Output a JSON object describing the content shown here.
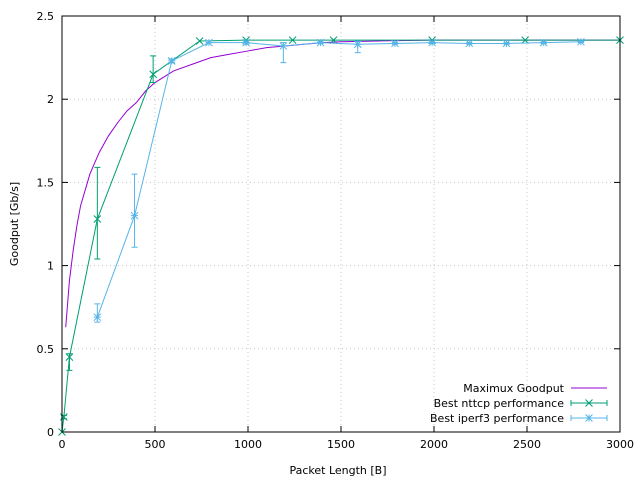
{
  "chart_data": {
    "type": "line",
    "xlabel": "Packet Length [B]",
    "ylabel": "Goodput [Gb/s]",
    "xlim": [
      0,
      3000
    ],
    "ylim": [
      0,
      2.5
    ],
    "xticks": [
      0,
      500,
      1000,
      1500,
      2000,
      2500,
      3000
    ],
    "yticks": [
      0,
      0.5,
      1,
      1.5,
      2,
      2.5
    ],
    "xtick_labels": [
      "0",
      "500",
      "1000",
      "1500",
      "2000",
      "2500",
      "3000"
    ],
    "ytick_labels": [
      "0",
      "0.5",
      "1",
      "1.5",
      "2",
      "2.5"
    ],
    "grid": true,
    "legend_position": "bottom-right",
    "series": [
      {
        "name": "Maximux Goodput",
        "kind": "curve",
        "color": "#9400d3",
        "points": [
          [
            20,
            0.63
          ],
          [
            40,
            0.91
          ],
          [
            60,
            1.09
          ],
          [
            80,
            1.24
          ],
          [
            100,
            1.36
          ],
          [
            150,
            1.55
          ],
          [
            200,
            1.68
          ],
          [
            250,
            1.78
          ],
          [
            300,
            1.86
          ],
          [
            350,
            1.93
          ],
          [
            400,
            1.98
          ],
          [
            450,
            2.05
          ],
          [
            500,
            2.1
          ],
          [
            600,
            2.17
          ],
          [
            700,
            2.21
          ],
          [
            800,
            2.25
          ],
          [
            900,
            2.27
          ],
          [
            1000,
            2.29
          ],
          [
            1100,
            2.31
          ],
          [
            1200,
            2.32
          ],
          [
            1300,
            2.33
          ],
          [
            1400,
            2.34
          ],
          [
            1500,
            2.345
          ],
          [
            1700,
            2.35
          ],
          [
            2000,
            2.355
          ],
          [
            2500,
            2.355
          ],
          [
            3000,
            2.355
          ]
        ]
      },
      {
        "name": "Best nttcp performance",
        "kind": "errorbars",
        "color": "#009e73",
        "marker": "x",
        "points": [
          {
            "x": 0,
            "y": 0.0,
            "ylo": 0.0,
            "yhi": 0.0
          },
          {
            "x": 10,
            "y": 0.09,
            "ylo": 0.08,
            "yhi": 0.1
          },
          {
            "x": 40,
            "y": 0.45,
            "ylo": 0.37,
            "yhi": 0.47
          },
          {
            "x": 190,
            "y": 1.28,
            "ylo": 1.04,
            "yhi": 1.59
          },
          {
            "x": 490,
            "y": 2.15,
            "ylo": 2.1,
            "yhi": 2.26
          },
          {
            "x": 590,
            "y": 2.23,
            "ylo": 2.22,
            "yhi": 2.24
          },
          {
            "x": 740,
            "y": 2.35,
            "ylo": 2.35,
            "yhi": 2.35
          },
          {
            "x": 990,
            "y": 2.355,
            "ylo": 2.355,
            "yhi": 2.355
          },
          {
            "x": 1240,
            "y": 2.355,
            "ylo": 2.355,
            "yhi": 2.355
          },
          {
            "x": 1460,
            "y": 2.355,
            "ylo": 2.355,
            "yhi": 2.355
          },
          {
            "x": 1990,
            "y": 2.355,
            "ylo": 2.355,
            "yhi": 2.355
          },
          {
            "x": 2490,
            "y": 2.355,
            "ylo": 2.355,
            "yhi": 2.355
          },
          {
            "x": 3000,
            "y": 2.355,
            "ylo": 2.355,
            "yhi": 2.355
          }
        ]
      },
      {
        "name": "Best iperf3 performance",
        "kind": "errorbars",
        "color": "#56b4e9",
        "marker": "star",
        "points": [
          {
            "x": 190,
            "y": 0.69,
            "ylo": 0.66,
            "yhi": 0.77
          },
          {
            "x": 390,
            "y": 1.3,
            "ylo": 1.11,
            "yhi": 1.55
          },
          {
            "x": 590,
            "y": 2.23,
            "ylo": 2.22,
            "yhi": 2.24
          },
          {
            "x": 790,
            "y": 2.34,
            "ylo": 2.34,
            "yhi": 2.35
          },
          {
            "x": 990,
            "y": 2.34,
            "ylo": 2.33,
            "yhi": 2.35
          },
          {
            "x": 1190,
            "y": 2.32,
            "ylo": 2.22,
            "yhi": 2.34
          },
          {
            "x": 1390,
            "y": 2.34,
            "ylo": 2.335,
            "yhi": 2.345
          },
          {
            "x": 1590,
            "y": 2.33,
            "ylo": 2.28,
            "yhi": 2.35
          },
          {
            "x": 1790,
            "y": 2.335,
            "ylo": 2.33,
            "yhi": 2.34
          },
          {
            "x": 1990,
            "y": 2.34,
            "ylo": 2.335,
            "yhi": 2.345
          },
          {
            "x": 2190,
            "y": 2.335,
            "ylo": 2.33,
            "yhi": 2.34
          },
          {
            "x": 2390,
            "y": 2.335,
            "ylo": 2.33,
            "yhi": 2.34
          },
          {
            "x": 2590,
            "y": 2.34,
            "ylo": 2.335,
            "yhi": 2.345
          },
          {
            "x": 2790,
            "y": 2.345,
            "ylo": 2.34,
            "yhi": 2.35
          }
        ]
      }
    ]
  }
}
